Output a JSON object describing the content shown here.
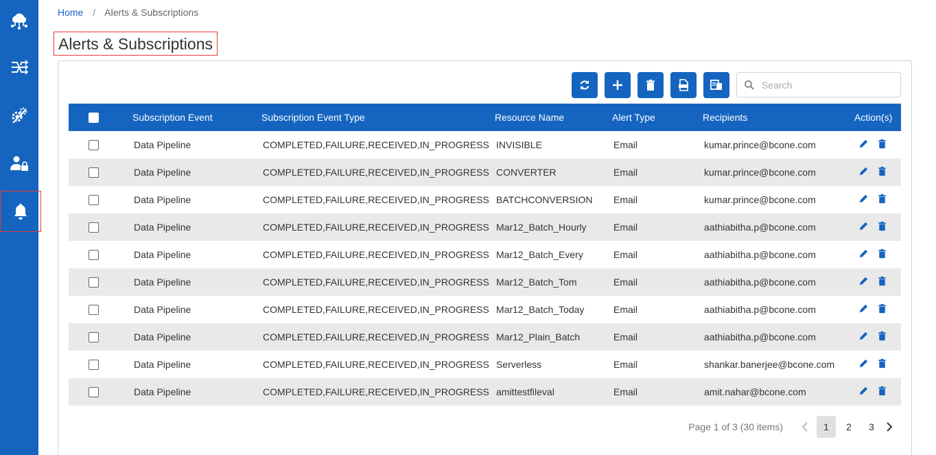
{
  "breadcrumb": {
    "home": "Home",
    "separator": "/",
    "current": "Alerts & Subscriptions"
  },
  "title": "Alerts & Subscriptions",
  "sidebar": {
    "items": [
      "cloud-network-icon",
      "pipeline-icon",
      "settings-gear-icon",
      "user-lock-icon",
      "bell-icon"
    ],
    "active": "bell-icon"
  },
  "toolbar": [
    "refresh-icon",
    "add-icon",
    "delete-icon",
    "export-xlsx-icon",
    "columns-icon"
  ],
  "search": {
    "placeholder": "Search",
    "value": ""
  },
  "table": {
    "headers": [
      "Subscription Event",
      "Subscription Event Type",
      "Resource Name",
      "Alert Type",
      "Recipients",
      "Action(s)"
    ],
    "rows": [
      {
        "event": "Data Pipeline",
        "type": "COMPLETED,FAILURE,RECEIVED,IN_PROGRESS",
        "resource": "INVISIBLE",
        "alert": "Email",
        "recipients": "kumar.prince@bcone.com"
      },
      {
        "event": "Data Pipeline",
        "type": "COMPLETED,FAILURE,RECEIVED,IN_PROGRESS",
        "resource": "CONVERTER",
        "alert": "Email",
        "recipients": "kumar.prince@bcone.com"
      },
      {
        "event": "Data Pipeline",
        "type": "COMPLETED,FAILURE,RECEIVED,IN_PROGRESS",
        "resource": "BATCHCONVERSION",
        "alert": "Email",
        "recipients": "kumar.prince@bcone.com"
      },
      {
        "event": "Data Pipeline",
        "type": "COMPLETED,FAILURE,RECEIVED,IN_PROGRESS",
        "resource": "Mar12_Batch_Hourly",
        "alert": "Email",
        "recipients": "aathiabitha.p@bcone.com"
      },
      {
        "event": "Data Pipeline",
        "type": "COMPLETED,FAILURE,RECEIVED,IN_PROGRESS",
        "resource": "Mar12_Batch_Every",
        "alert": "Email",
        "recipients": "aathiabitha.p@bcone.com"
      },
      {
        "event": "Data Pipeline",
        "type": "COMPLETED,FAILURE,RECEIVED,IN_PROGRESS",
        "resource": "Mar12_Batch_Tom",
        "alert": "Email",
        "recipients": "aathiabitha.p@bcone.com"
      },
      {
        "event": "Data Pipeline",
        "type": "COMPLETED,FAILURE,RECEIVED,IN_PROGRESS",
        "resource": "Mar12_Batch_Today",
        "alert": "Email",
        "recipients": "aathiabitha.p@bcone.com"
      },
      {
        "event": "Data Pipeline",
        "type": "COMPLETED,FAILURE,RECEIVED,IN_PROGRESS",
        "resource": "Mar12_Plain_Batch",
        "alert": "Email",
        "recipients": "aathiabitha.p@bcone.com"
      },
      {
        "event": "Data Pipeline",
        "type": "COMPLETED,FAILURE,RECEIVED,IN_PROGRESS",
        "resource": "Serverless",
        "alert": "Email",
        "recipients": "shankar.banerjee@bcone.com"
      },
      {
        "event": "Data Pipeline",
        "type": "COMPLETED,FAILURE,RECEIVED,IN_PROGRESS",
        "resource": "amittestfileval",
        "alert": "Email",
        "recipients": "amit.nahar@bcone.com"
      }
    ]
  },
  "pagination": {
    "info": "Page 1 of 3 (30 items)",
    "pages": [
      "1",
      "2",
      "3"
    ],
    "current": "1"
  },
  "colors": {
    "primary": "#1565c0",
    "highlight": "#e53935",
    "row_alt": "#e9e9e9"
  }
}
